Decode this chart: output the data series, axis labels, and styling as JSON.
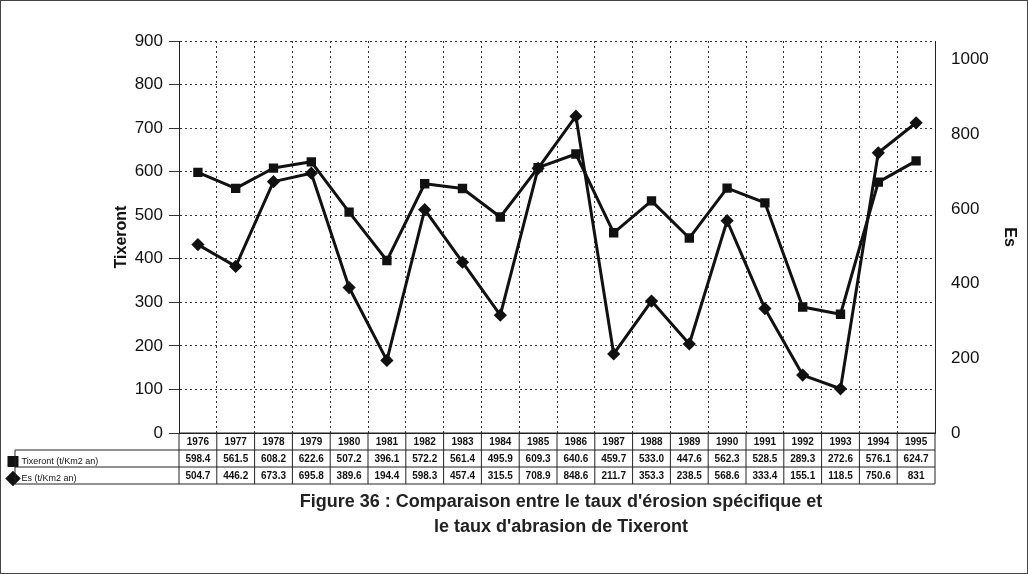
{
  "chart_data": {
    "type": "line",
    "title": "Figure 36  : Comparaison entre le taux d'érosion spécifique et le taux d'abrasion de Tixeront",
    "ylabel": "Tixeront",
    "y2label": "Es",
    "categories": [
      "1976",
      "1977",
      "1978",
      "1979",
      "1980",
      "1981",
      "1982",
      "1983",
      "1984",
      "1985",
      "1986",
      "1987",
      "1988",
      "1989",
      "1990",
      "1991",
      "1992",
      "1993",
      "1994",
      "1995"
    ],
    "series": [
      {
        "name": "Tixeront (t/Km2 an)",
        "color": "#111111",
        "marker": "square",
        "values": [
          598.4,
          561.5,
          608.2,
          622.6,
          507.2,
          396.1,
          572.2,
          561.4,
          495.9,
          609.3,
          640.6,
          459.7,
          533.0,
          447.6,
          562.3,
          528.5,
          289.3,
          272.6,
          576.1,
          624.7
        ],
        "value_labels": [
          "598.4",
          "561.5",
          "608.2",
          "622.6",
          "507.2",
          "396.1",
          "572.2",
          "561.4",
          "495.9",
          "609.3",
          "640.6",
          "459.7",
          "533.0",
          "447.6",
          "562.3",
          "528.5",
          "289.3",
          "272.6",
          "576.1",
          "624.7"
        ]
      },
      {
        "name": "Es (t/Km2 an)",
        "color": "#111111",
        "marker": "diamond",
        "axis": "y2",
        "values": [
          504.7,
          446.2,
          673.3,
          695.8,
          389.6,
          194.4,
          598.3,
          457.4,
          315.5,
          708.9,
          848.6,
          211.7,
          353.3,
          238.5,
          568.6,
          333.4,
          155.1,
          118.5,
          750.6,
          831
        ],
        "value_labels": [
          "504.7",
          "446.2",
          "673.3",
          "695.8",
          "389.6",
          "194.4",
          "598.3",
          "457.4",
          "315.5",
          "708.9",
          "848.6",
          "211.7",
          "353.3",
          "238.5",
          "568.6",
          "333.4",
          "155.1",
          "118.5",
          "750.6",
          "831"
        ]
      }
    ],
    "ylim": [
      0,
      900
    ],
    "yticks": [
      0,
      100,
      200,
      300,
      400,
      500,
      600,
      700,
      800,
      900
    ],
    "y2lim": [
      0,
      1050
    ],
    "y2ticks": [
      0,
      200,
      400,
      600,
      800,
      1000
    ],
    "grid": true,
    "legend": "bottom left",
    "line_style": "solid"
  }
}
